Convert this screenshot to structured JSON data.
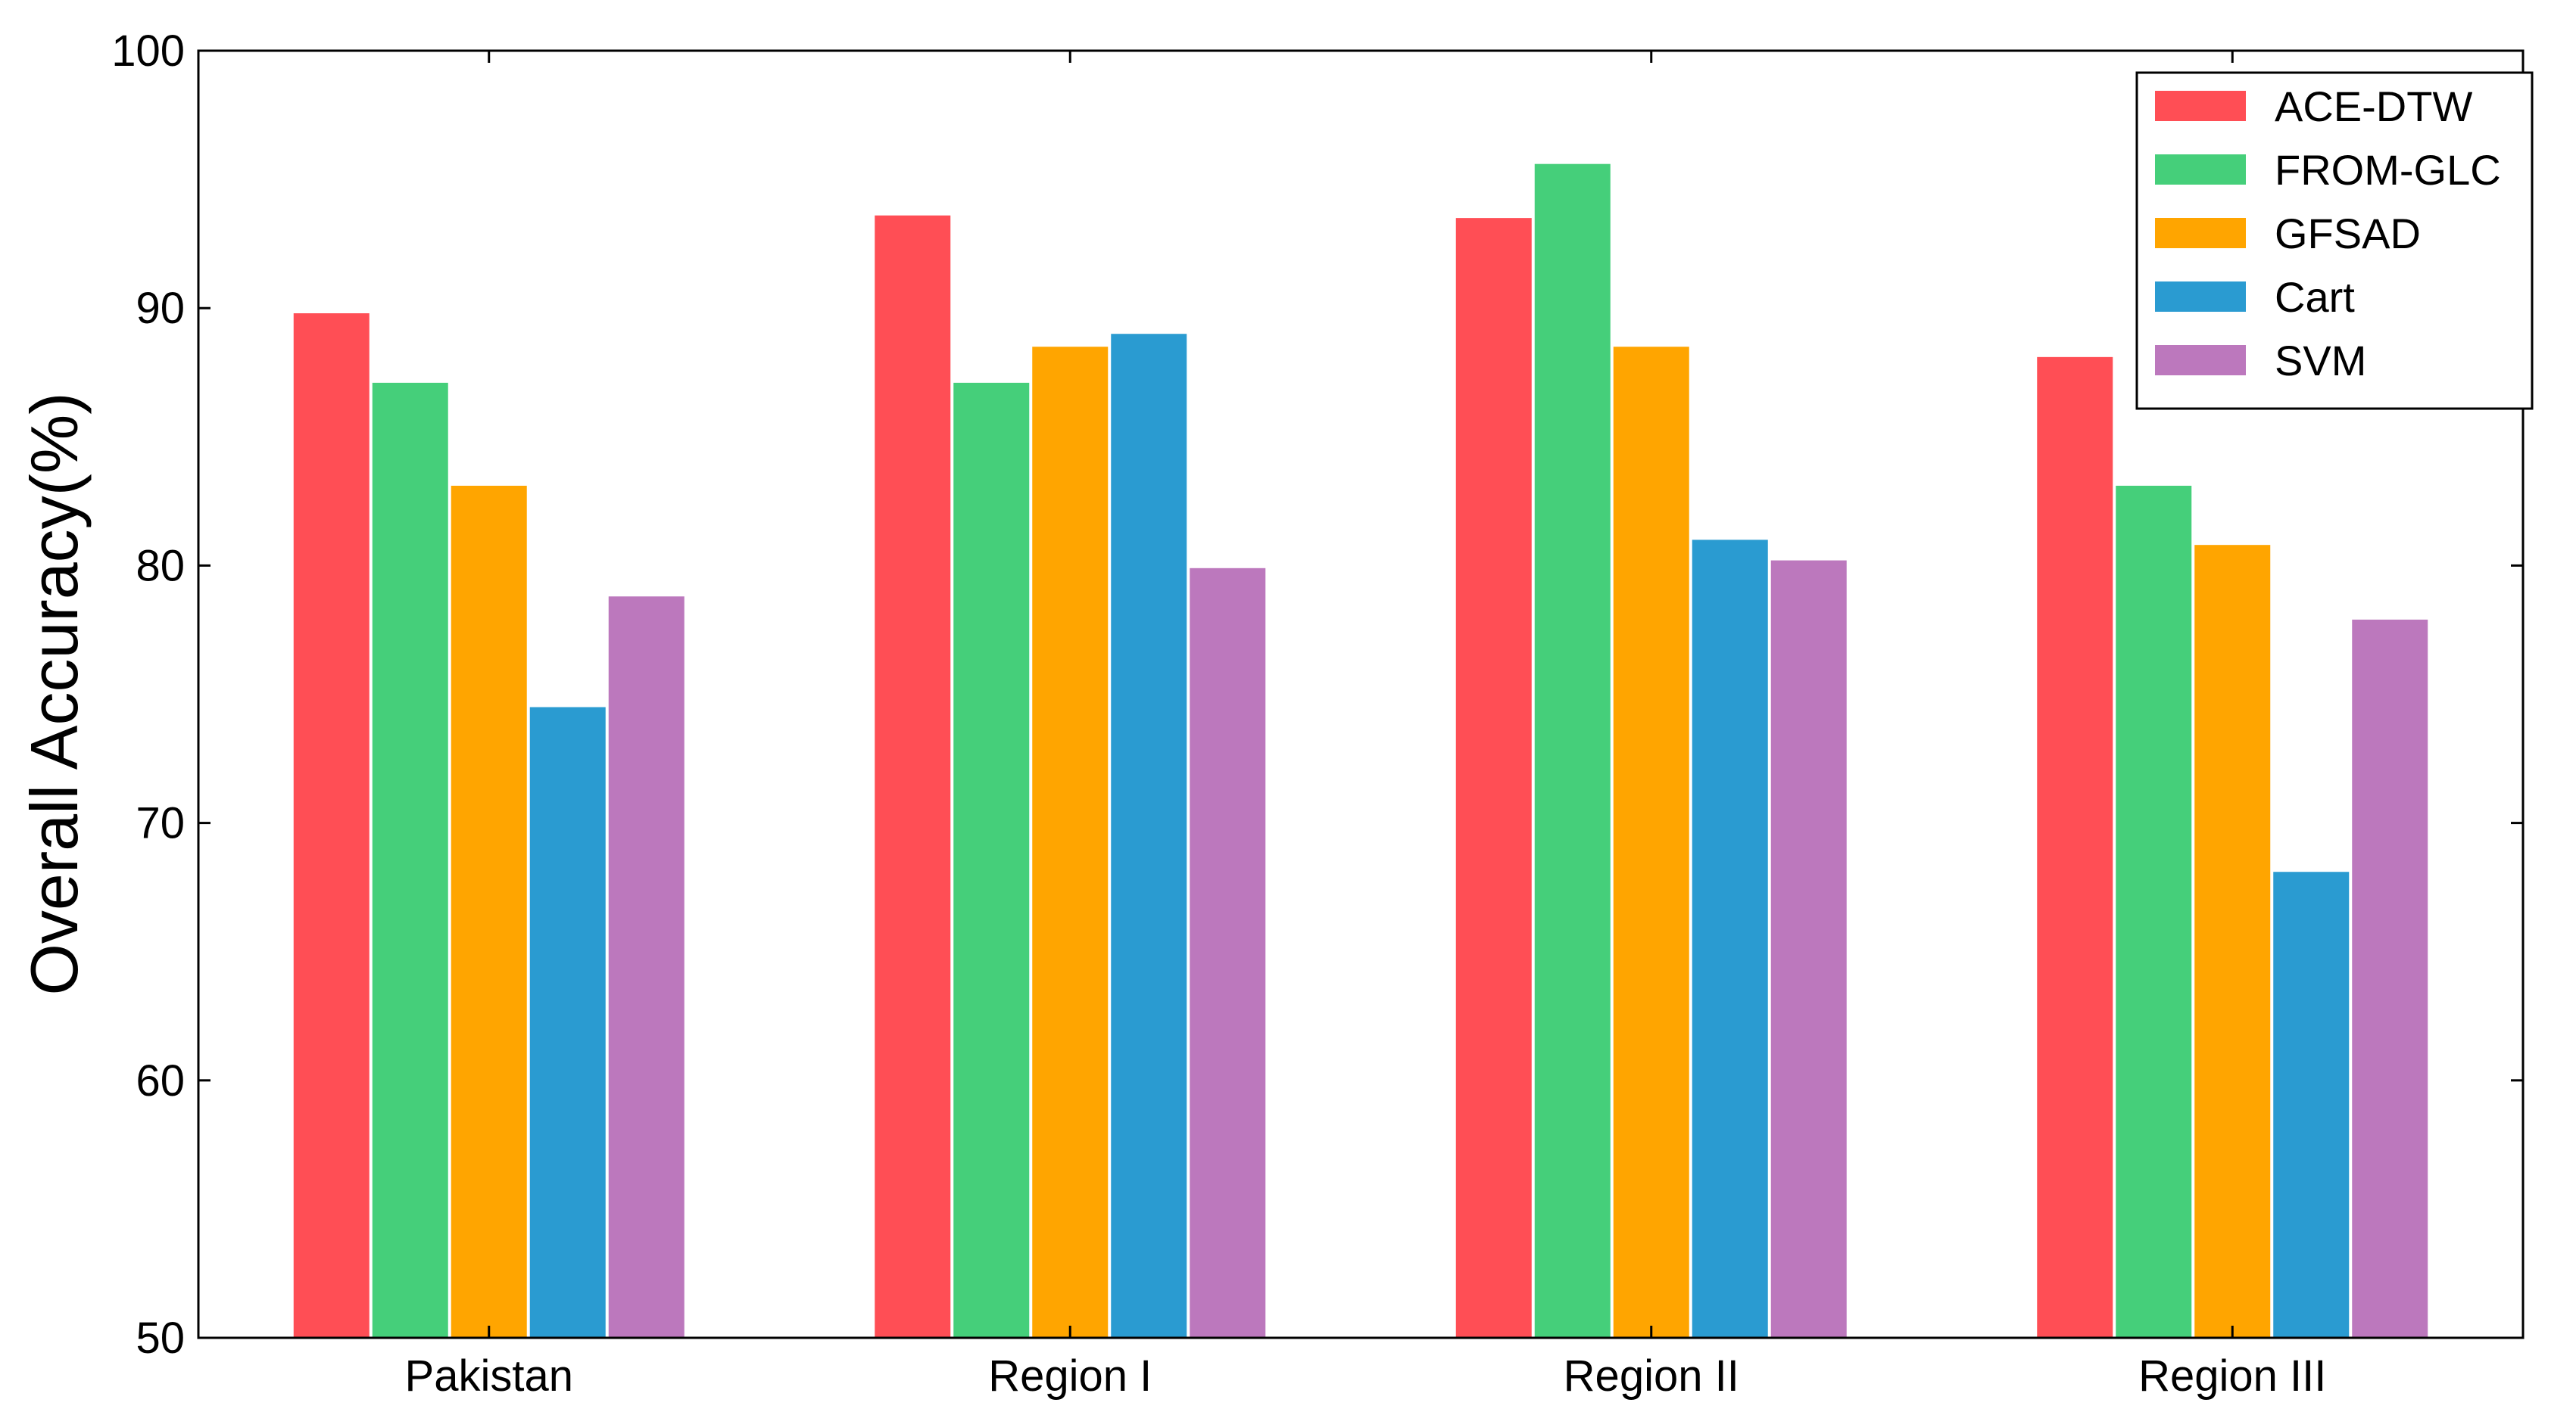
{
  "chart_data": {
    "type": "bar",
    "title": "",
    "xlabel": "",
    "ylabel": "Overall Accuracy(%)",
    "ylim": [
      50,
      100
    ],
    "yticks": [
      "50",
      "60",
      "70",
      "80",
      "90",
      "100"
    ],
    "categories": [
      "Pakistan",
      "Region I",
      "Region II",
      "Region III"
    ],
    "series": [
      {
        "name": "ACE-DTW",
        "color": "#ff4e55",
        "values": [
          89.8,
          93.6,
          93.5,
          88.1
        ]
      },
      {
        "name": "FROM-GLC",
        "color": "#45cf7a",
        "values": [
          87.1,
          87.1,
          95.6,
          83.1
        ]
      },
      {
        "name": "GFSAD",
        "color": "#ffa500",
        "values": [
          83.1,
          88.5,
          88.5,
          80.8
        ]
      },
      {
        "name": "Cart",
        "color": "#2a9bd1",
        "values": [
          74.5,
          89.0,
          81.0,
          68.1
        ]
      },
      {
        "name": "SVM",
        "color": "#bc78bd",
        "values": [
          78.8,
          79.9,
          80.2,
          77.9
        ]
      }
    ],
    "legend": "top-right",
    "grid": false
  }
}
